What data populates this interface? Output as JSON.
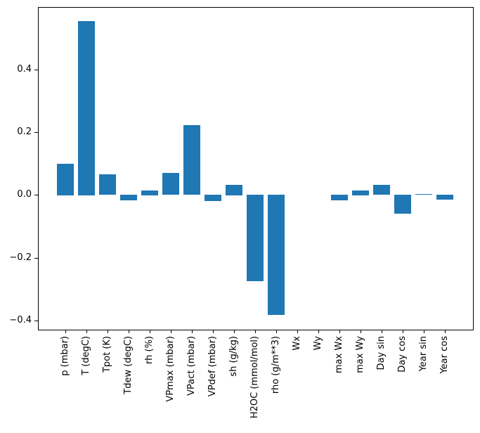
{
  "figure": {
    "background": "#ffffff",
    "spine_color": "#000000",
    "text_color": "#000000"
  },
  "chart_data": {
    "type": "bar",
    "title": "",
    "xlabel": "",
    "ylabel": "",
    "grid": false,
    "legend": "none",
    "bar_color": "#1f77b4",
    "xtick_rotation": 90,
    "ylim": [
      -0.43,
      0.6
    ],
    "yticks": [
      -0.4,
      -0.2,
      0.0,
      0.2,
      0.4
    ],
    "ytick_labels": [
      "−0.4",
      "−0.2",
      "0.0",
      "0.2",
      "0.4"
    ],
    "categories": [
      "p (mbar)",
      "T (degC)",
      "Tpot (K)",
      "Tdew (degC)",
      "rh (%)",
      "VPmax (mbar)",
      "VPact (mbar)",
      "VPdef (mbar)",
      "sh (g/kg)",
      "H2OC (mmol/mol)",
      "rho (g/m**3)",
      "Wx",
      "Wy",
      "max Wx",
      "max Wy",
      "Day sin",
      "Day cos",
      "Year sin",
      "Year cos"
    ],
    "values": [
      0.1,
      0.556,
      0.066,
      -0.018,
      0.015,
      0.07,
      0.223,
      -0.021,
      0.033,
      -0.277,
      -0.383,
      0.0,
      0.0,
      -0.018,
      0.015,
      0.032,
      -0.06,
      0.002,
      -0.016
    ]
  }
}
